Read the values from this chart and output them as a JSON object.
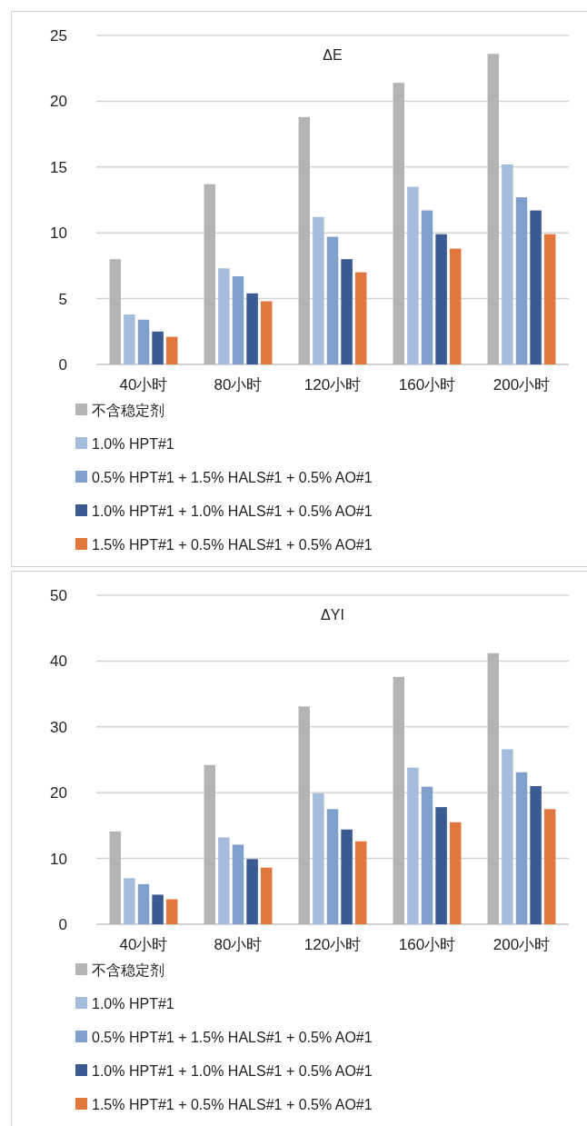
{
  "chart_data": [
    {
      "type": "bar",
      "title": "ΔE",
      "categories": [
        "40小时",
        "80小时",
        "120小时",
        "160小时",
        "200小时"
      ],
      "ylim": [
        0,
        25
      ],
      "yticks": [
        0,
        5,
        10,
        15,
        20,
        25
      ],
      "grid": "y",
      "legend": "bottom",
      "series": [
        {
          "name": "不含稳定剂",
          "color": "#b4b4b6",
          "values": [
            8.0,
            13.7,
            18.8,
            21.4,
            23.6
          ]
        },
        {
          "name": "1.0% HPT#1",
          "color": "#a5bcdc",
          "values": [
            3.8,
            7.3,
            11.2,
            13.5,
            15.2
          ]
        },
        {
          "name": "0.5% HPT#1 + 1.5% HALS#1 + 0.5% AO#1",
          "color": "#7f9fcd",
          "values": [
            3.4,
            6.7,
            9.7,
            11.7,
            12.7
          ]
        },
        {
          "name": "1.0% HPT#1 + 1.0% HALS#1 + 0.5% AO#1",
          "color": "#3a5a92",
          "values": [
            2.5,
            5.4,
            8.0,
            9.9,
            11.7
          ]
        },
        {
          "name": "1.5% HPT#1 + 0.5% HALS#1 + 0.5% AO#1",
          "color": "#e2773e",
          "values": [
            2.1,
            4.8,
            7.0,
            8.8,
            9.9
          ]
        }
      ]
    },
    {
      "type": "bar",
      "title": "ΔYI",
      "categories": [
        "40小时",
        "80小时",
        "120小时",
        "160小时",
        "200小时"
      ],
      "ylim": [
        0,
        50
      ],
      "yticks": [
        0,
        10,
        20,
        30,
        40,
        50
      ],
      "grid": "y",
      "legend": "bottom",
      "series": [
        {
          "name": "不含稳定剂",
          "color": "#b4b4b6",
          "values": [
            14.1,
            24.2,
            33.1,
            37.6,
            41.2
          ]
        },
        {
          "name": "1.0% HPT#1",
          "color": "#a5bcdc",
          "values": [
            7.0,
            13.2,
            19.9,
            23.8,
            26.6
          ]
        },
        {
          "name": "0.5% HPT#1 + 1.5% HALS#1 + 0.5% AO#1",
          "color": "#7f9fcd",
          "values": [
            6.1,
            12.1,
            17.5,
            20.9,
            23.1
          ]
        },
        {
          "name": "1.0% HPT#1 + 1.0% HALS#1 + 0.5% AO#1",
          "color": "#3a5a92",
          "values": [
            4.5,
            9.9,
            14.4,
            17.8,
            21.0
          ]
        },
        {
          "name": "1.5% HPT#1 + 0.5% HALS#1 + 0.5% AO#1",
          "color": "#e2773e",
          "values": [
            3.8,
            8.6,
            12.6,
            15.5,
            17.5
          ]
        }
      ]
    }
  ]
}
